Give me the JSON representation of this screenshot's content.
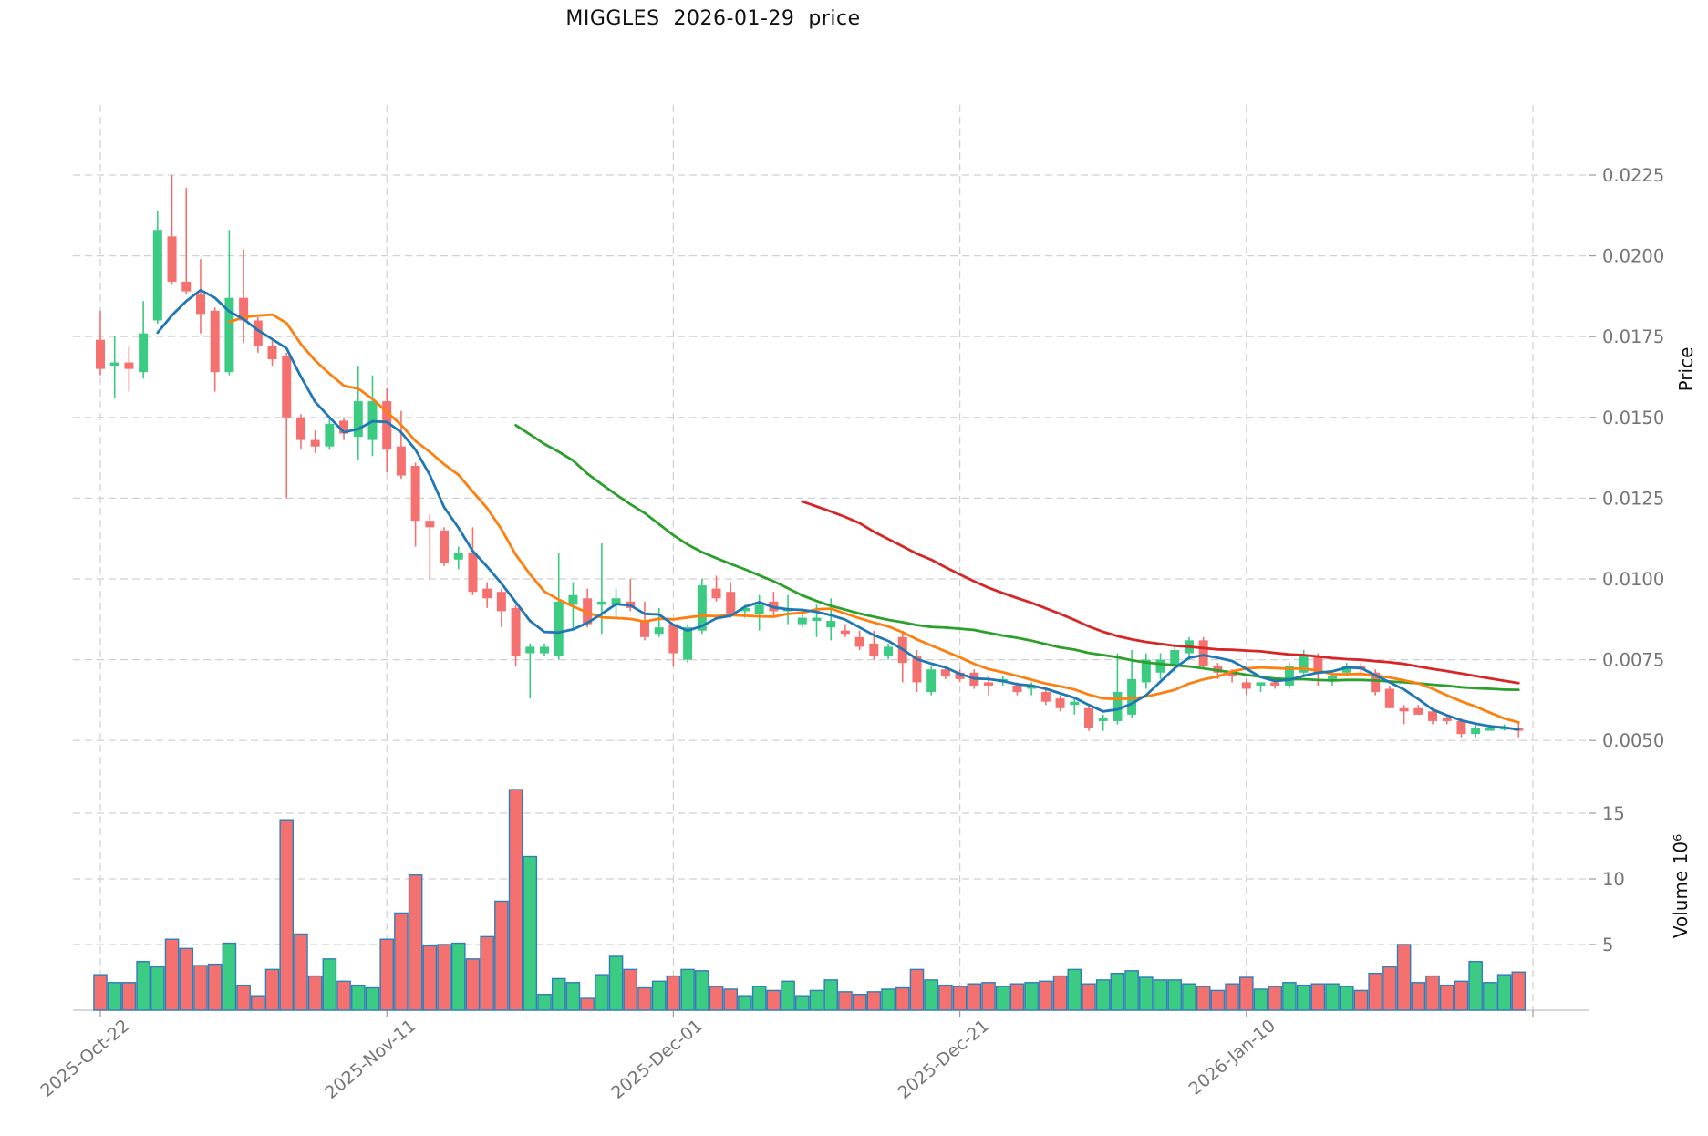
{
  "chart_data": {
    "type": "candlestick",
    "title": "MIGGLES  2026-01-29  price",
    "price_axis": {
      "label": "Price",
      "ticks": [
        0.0225,
        0.02,
        0.0175,
        0.015,
        0.0125,
        0.01,
        0.0075,
        0.005
      ],
      "ylim": [
        0.004,
        0.0245
      ]
    },
    "volume_axis": {
      "label": "Volume 10⁶",
      "ticks": [
        15,
        10,
        5
      ],
      "unit": "millions",
      "ylim": [
        0,
        19
      ]
    },
    "x_axis": {
      "tick_labels": [
        "2025-Oct-22",
        "2025-Nov-11",
        "2025-Dec-01",
        "2025-Dec-21",
        "2026-Jan-10"
      ],
      "tick_indices": [
        0,
        20,
        40,
        60,
        80
      ],
      "extra_gridline_index": 100,
      "grid": true
    },
    "moving_averages": {
      "windows": [
        5,
        10,
        30,
        50
      ],
      "colors": [
        "#1f77b4",
        "#ff7f0e",
        "#2ca02c",
        "#d62728"
      ],
      "names": [
        "mav5",
        "mav10",
        "mav30",
        "mav50"
      ]
    },
    "colors": {
      "up": "#3bcb82",
      "down": "#f5716f",
      "volume_edge": "#2f7eb8",
      "grid": "#d0d0d0",
      "tick_text": "#757575",
      "axis_line": "#cccccc",
      "title_text": "#111111",
      "background": "#ffffff"
    },
    "candle_fields": [
      "date",
      "open",
      "high",
      "low",
      "close",
      "volume_millions"
    ],
    "candles": [
      [
        "2025-10-22",
        0.0174,
        0.0183,
        0.0163,
        0.0165,
        2.7
      ],
      [
        "2025-10-23",
        0.0166,
        0.0175,
        0.0156,
        0.0167,
        2.1
      ],
      [
        "2025-10-24",
        0.0167,
        0.0172,
        0.0158,
        0.0165,
        2.1
      ],
      [
        "2025-10-25",
        0.0164,
        0.0186,
        0.0162,
        0.0176,
        3.7
      ],
      [
        "2025-10-26",
        0.018,
        0.0214,
        0.0179,
        0.0208,
        3.3
      ],
      [
        "2025-10-27",
        0.0206,
        0.0225,
        0.0191,
        0.0192,
        5.4
      ],
      [
        "2025-10-28",
        0.0192,
        0.0221,
        0.0188,
        0.0189,
        4.7
      ],
      [
        "2025-10-29",
        0.0188,
        0.0199,
        0.0176,
        0.0182,
        3.4
      ],
      [
        "2025-10-30",
        0.0183,
        0.0184,
        0.0158,
        0.0164,
        3.5
      ],
      [
        "2025-10-31",
        0.0164,
        0.0208,
        0.0163,
        0.0187,
        5.1
      ],
      [
        "2025-11-01",
        0.0187,
        0.0202,
        0.0173,
        0.018,
        1.9
      ],
      [
        "2025-11-02",
        0.018,
        0.0181,
        0.017,
        0.0172,
        1.1
      ],
      [
        "2025-11-03",
        0.0172,
        0.0174,
        0.0166,
        0.0168,
        3.1
      ],
      [
        "2025-11-04",
        0.0169,
        0.017,
        0.0125,
        0.015,
        14.5
      ],
      [
        "2025-11-05",
        0.015,
        0.0151,
        0.014,
        0.0143,
        5.8
      ],
      [
        "2025-11-06",
        0.0143,
        0.0146,
        0.0139,
        0.0141,
        2.6
      ],
      [
        "2025-11-07",
        0.0141,
        0.015,
        0.014,
        0.0148,
        3.9
      ],
      [
        "2025-11-08",
        0.0149,
        0.015,
        0.0143,
        0.0145,
        2.2
      ],
      [
        "2025-11-09",
        0.0144,
        0.0166,
        0.0137,
        0.0155,
        1.9
      ],
      [
        "2025-11-10",
        0.0143,
        0.0163,
        0.0138,
        0.0155,
        1.7
      ],
      [
        "2025-11-11",
        0.0155,
        0.0159,
        0.0133,
        0.014,
        5.4
      ],
      [
        "2025-11-12",
        0.0141,
        0.0152,
        0.0131,
        0.0132,
        7.4
      ],
      [
        "2025-11-13",
        0.0135,
        0.0136,
        0.011,
        0.0118,
        10.3
      ],
      [
        "2025-11-14",
        0.0118,
        0.012,
        0.01,
        0.0116,
        4.9
      ],
      [
        "2025-11-15",
        0.0115,
        0.0116,
        0.0104,
        0.0105,
        5.0
      ],
      [
        "2025-11-16",
        0.0106,
        0.011,
        0.0103,
        0.0108,
        5.1
      ],
      [
        "2025-11-17",
        0.0108,
        0.0116,
        0.0095,
        0.0096,
        3.9
      ],
      [
        "2025-11-18",
        0.0097,
        0.0099,
        0.0091,
        0.0094,
        5.6
      ],
      [
        "2025-11-19",
        0.0096,
        0.0097,
        0.0085,
        0.009,
        8.3
      ],
      [
        "2025-11-20",
        0.0091,
        0.0092,
        0.0073,
        0.0076,
        16.8
      ],
      [
        "2025-11-21",
        0.0077,
        0.008,
        0.0063,
        0.0079,
        11.7
      ],
      [
        "2025-11-22",
        0.0077,
        0.008,
        0.0076,
        0.0079,
        1.2
      ],
      [
        "2025-11-23",
        0.0076,
        0.0108,
        0.0075,
        0.0093,
        2.4
      ],
      [
        "2025-11-24",
        0.0092,
        0.0099,
        0.0084,
        0.0095,
        2.1
      ],
      [
        "2025-11-25",
        0.0094,
        0.0097,
        0.0085,
        0.0086,
        0.9
      ],
      [
        "2025-11-26",
        0.0092,
        0.0111,
        0.0083,
        0.0093,
        2.7
      ],
      [
        "2025-11-27",
        0.0092,
        0.0097,
        0.0088,
        0.0094,
        4.1
      ],
      [
        "2025-11-28",
        0.0093,
        0.01,
        0.009,
        0.0091,
        3.1
      ],
      [
        "2025-11-29",
        0.0087,
        0.0093,
        0.0081,
        0.0082,
        1.7
      ],
      [
        "2025-11-30",
        0.0083,
        0.0091,
        0.0082,
        0.0085,
        2.2
      ],
      [
        "2025-12-01",
        0.0086,
        0.0086,
        0.0073,
        0.0077,
        2.6
      ],
      [
        "2025-12-02",
        0.0075,
        0.0086,
        0.0074,
        0.0085,
        3.1
      ],
      [
        "2025-12-03",
        0.0084,
        0.01,
        0.0083,
        0.0098,
        3.0
      ],
      [
        "2025-12-04",
        0.0097,
        0.0101,
        0.0093,
        0.0094,
        1.8
      ],
      [
        "2025-12-05",
        0.0096,
        0.0099,
        0.0088,
        0.0089,
        1.6
      ],
      [
        "2025-12-06",
        0.009,
        0.0092,
        0.0088,
        0.0091,
        1.1
      ],
      [
        "2025-12-07",
        0.0089,
        0.0095,
        0.0084,
        0.0092,
        1.8
      ],
      [
        "2025-12-08",
        0.0093,
        0.0096,
        0.0088,
        0.009,
        1.5
      ],
      [
        "2025-12-09",
        0.009,
        0.0095,
        0.0086,
        0.0091,
        2.2
      ],
      [
        "2025-12-10",
        0.0086,
        0.0091,
        0.0085,
        0.0088,
        1.1
      ],
      [
        "2025-12-11",
        0.0087,
        0.0092,
        0.0082,
        0.0088,
        1.5
      ],
      [
        "2025-12-12",
        0.0085,
        0.0094,
        0.0081,
        0.0087,
        2.3
      ],
      [
        "2025-12-13",
        0.0084,
        0.0086,
        0.0082,
        0.0083,
        1.4
      ],
      [
        "2025-12-14",
        0.0082,
        0.0084,
        0.0078,
        0.0079,
        1.2
      ],
      [
        "2025-12-15",
        0.008,
        0.0084,
        0.0075,
        0.0076,
        1.4
      ],
      [
        "2025-12-16",
        0.0076,
        0.008,
        0.0075,
        0.0079,
        1.6
      ],
      [
        "2025-12-17",
        0.0082,
        0.0084,
        0.0068,
        0.0074,
        1.7
      ],
      [
        "2025-12-18",
        0.0076,
        0.0078,
        0.0065,
        0.0068,
        3.1
      ],
      [
        "2025-12-19",
        0.0065,
        0.0073,
        0.0064,
        0.0072,
        2.3
      ],
      [
        "2025-12-20",
        0.0072,
        0.0073,
        0.0069,
        0.007,
        1.9
      ],
      [
        "2025-12-21",
        0.0071,
        0.0072,
        0.0068,
        0.0069,
        1.8
      ],
      [
        "2025-12-22",
        0.0071,
        0.0072,
        0.0066,
        0.0067,
        2.0
      ],
      [
        "2025-12-23",
        0.0068,
        0.007,
        0.0064,
        0.0067,
        2.1
      ],
      [
        "2025-12-24",
        0.0068,
        0.007,
        0.0067,
        0.0069,
        1.8
      ],
      [
        "2025-12-25",
        0.0067,
        0.0068,
        0.0064,
        0.0065,
        2.0
      ],
      [
        "2025-12-26",
        0.0066,
        0.0068,
        0.0064,
        0.0067,
        2.1
      ],
      [
        "2025-12-27",
        0.0065,
        0.0066,
        0.0061,
        0.0062,
        2.2
      ],
      [
        "2025-12-28",
        0.0063,
        0.0064,
        0.0059,
        0.006,
        2.6
      ],
      [
        "2025-12-29",
        0.0061,
        0.0063,
        0.0058,
        0.0062,
        3.1
      ],
      [
        "2025-12-30",
        0.006,
        0.0061,
        0.0053,
        0.0054,
        2.0
      ],
      [
        "2025-12-31",
        0.0056,
        0.0058,
        0.0053,
        0.0057,
        2.3
      ],
      [
        "2026-01-01",
        0.0056,
        0.0077,
        0.0055,
        0.0065,
        2.8
      ],
      [
        "2026-01-02",
        0.0058,
        0.0078,
        0.0057,
        0.0069,
        3.0
      ],
      [
        "2026-01-03",
        0.0068,
        0.0077,
        0.0066,
        0.0075,
        2.5
      ],
      [
        "2026-01-04",
        0.0071,
        0.0077,
        0.0069,
        0.0075,
        2.3
      ],
      [
        "2026-01-05",
        0.0073,
        0.0079,
        0.0071,
        0.0078,
        2.3
      ],
      [
        "2026-01-06",
        0.0077,
        0.0082,
        0.0075,
        0.0081,
        2.0
      ],
      [
        "2026-01-07",
        0.0081,
        0.0082,
        0.0072,
        0.0073,
        1.8
      ],
      [
        "2026-01-08",
        0.0073,
        0.0074,
        0.0069,
        0.0071,
        1.5
      ],
      [
        "2026-01-09",
        0.0071,
        0.0072,
        0.0068,
        0.007,
        2.0
      ],
      [
        "2026-01-10",
        0.0068,
        0.0069,
        0.0064,
        0.0066,
        2.5
      ],
      [
        "2026-01-11",
        0.0067,
        0.0068,
        0.0065,
        0.0068,
        1.6
      ],
      [
        "2026-01-12",
        0.0068,
        0.0069,
        0.0066,
        0.0067,
        1.8
      ],
      [
        "2026-01-13",
        0.0067,
        0.0074,
        0.0066,
        0.0073,
        2.1
      ],
      [
        "2026-01-14",
        0.0071,
        0.0078,
        0.007,
        0.0076,
        1.9
      ],
      [
        "2026-01-15",
        0.0076,
        0.0077,
        0.0067,
        0.0071,
        2.0
      ],
      [
        "2026-01-16",
        0.0069,
        0.0071,
        0.0067,
        0.007,
        2.0
      ],
      [
        "2026-01-17",
        0.0071,
        0.0074,
        0.007,
        0.0073,
        1.8
      ],
      [
        "2026-01-18",
        0.0073,
        0.0074,
        0.0071,
        0.0072,
        1.5
      ],
      [
        "2026-01-19",
        0.0071,
        0.0072,
        0.0064,
        0.0065,
        2.8
      ],
      [
        "2026-01-20",
        0.0066,
        0.0067,
        0.006,
        0.006,
        3.3
      ],
      [
        "2026-01-21",
        0.006,
        0.0061,
        0.0055,
        0.0059,
        5.0
      ],
      [
        "2026-01-22",
        0.006,
        0.0061,
        0.0058,
        0.0058,
        2.1
      ],
      [
        "2026-01-23",
        0.0059,
        0.006,
        0.0055,
        0.0056,
        2.6
      ],
      [
        "2026-01-24",
        0.0057,
        0.0058,
        0.0055,
        0.0056,
        1.9
      ],
      [
        "2026-01-25",
        0.0056,
        0.0057,
        0.0051,
        0.0052,
        2.2
      ],
      [
        "2026-01-26",
        0.0052,
        0.0055,
        0.0051,
        0.0054,
        3.7
      ],
      [
        "2026-01-27",
        0.0053,
        0.0055,
        0.0053,
        0.0054,
        2.1
      ],
      [
        "2026-01-28",
        0.0054,
        0.0055,
        0.0053,
        0.0054,
        2.7
      ],
      [
        "2026-01-29",
        0.0054,
        0.0056,
        0.0051,
        0.0053,
        2.9
      ]
    ]
  }
}
